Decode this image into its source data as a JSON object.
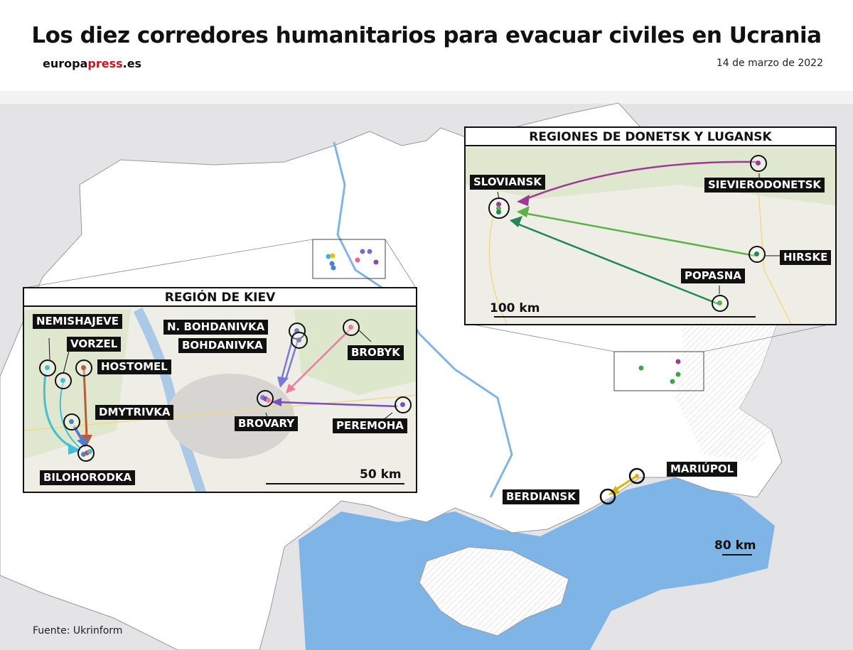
{
  "header": {
    "title": "Los diez corredores humanitarios para evacuar civiles en Ucrania",
    "logo": {
      "part1": "europa",
      "part2": "press",
      "part3": ".es"
    },
    "date": "14 de marzo de 2022"
  },
  "colors": {
    "sea": "#7fb5e6",
    "land_other": "#e4e4e6",
    "ukraine": "#ffffff",
    "inset_bg": "#efeee6",
    "logo_red": "#d0121b"
  },
  "main_map": {
    "scale_label": "80 km",
    "labels": {
      "mariupol": "MARIÚPOL",
      "berdiansk": "BERDIANSK"
    },
    "corridor_color": "#d8b400"
  },
  "kiev_inset": {
    "title": "REGIÓN DE KIEV",
    "scale_label": "50 km",
    "labels": {
      "nemishajeve": "NEMISHAJEVE",
      "vorzel": "VORZEL",
      "hostomel": "HOSTOMEL",
      "dmytrivka": "DMYTRIVKA",
      "bilohorodka": "BILOHORODKA",
      "n_bohdanivka": "N. BOHDANIVKA",
      "bohdanivka": "BOHDANIVKA",
      "brobyk": "BROBYK",
      "brovary": "BROVARY",
      "peremoha": "PEREMOHA"
    }
  },
  "donbas_inset": {
    "title": "REGIONES DE DONETSK Y LUGANSK",
    "scale_label": "100 km",
    "labels": {
      "sloviansk": "SLOVIANSK",
      "sievierodonetsk": "SIEVIERODONETSK",
      "hirske": "HIRSKE",
      "popasna": "POPASNA"
    }
  },
  "source": "Fuente: Ukrinform"
}
